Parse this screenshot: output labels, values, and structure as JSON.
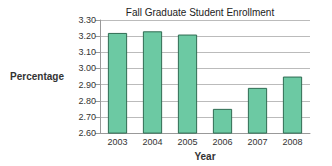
{
  "chart_data": {
    "type": "bar",
    "title": "Fall Graduate Student Enrollment",
    "x_label": "Year",
    "y_label": "Percentage",
    "categories": [
      "2003",
      "2004",
      "2005",
      "2006",
      "2007",
      "2008"
    ],
    "values": [
      3.22,
      3.23,
      3.21,
      2.75,
      2.88,
      2.95
    ],
    "color": "#6cc9a3",
    "ylim": [
      2.6,
      3.3
    ],
    "yticks": [
      {
        "value": 2.6,
        "label": "2.60"
      },
      {
        "value": 2.7,
        "label": "2.70"
      },
      {
        "value": 2.8,
        "label": "2.80"
      },
      {
        "value": 2.9,
        "label": "2.90"
      },
      {
        "value": 3.0,
        "label": "3.00"
      },
      {
        "value": 3.1,
        "label": "3.10"
      },
      {
        "value": 3.2,
        "label": "3.20"
      },
      {
        "value": 3.3,
        "label": "3.30"
      }
    ],
    "grid": true
  }
}
